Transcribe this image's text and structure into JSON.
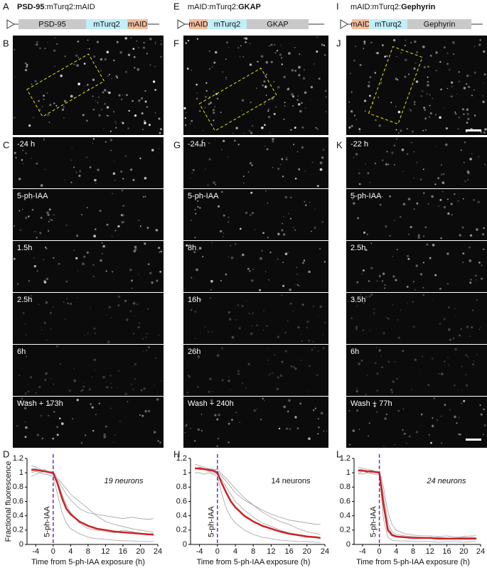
{
  "columns": [
    {
      "construct_letter": "A",
      "title": [
        "PSD-95",
        ":mTurq2:mAID"
      ],
      "bold_index": 0,
      "construct": [
        {
          "label": "PSD-95",
          "color": "#c9c9c9"
        },
        {
          "label": "mTurq2",
          "color": "#c2eef8"
        },
        {
          "label": "mAID",
          "color": "#f3bc9e"
        }
      ],
      "overview_letter": "B",
      "timelapse_letter": "C",
      "time_labels": [
        "-24 h",
        "5-ph-IAA",
        "1.5h",
        "2.5h",
        "6h",
        "Wash +  173h"
      ],
      "chart_letter": "D"
    },
    {
      "construct_letter": "E",
      "title": [
        "mAID:mTurq2:",
        "GKAP"
      ],
      "bold_index": 1,
      "construct": [
        {
          "label": "mAID",
          "color": "#f3bc9e"
        },
        {
          "label": "mTurq2",
          "color": "#c2eef8"
        },
        {
          "label": "GKAP",
          "color": "#c9c9c9"
        }
      ],
      "overview_letter": "F",
      "timelapse_letter": "G",
      "time_labels": [
        "-24 h",
        "5-ph-IAA",
        "8h",
        "16h",
        "26h",
        "Wash +  240h"
      ],
      "chart_letter": "H"
    },
    {
      "construct_letter": "I",
      "title": [
        "mAID:mTurq2:",
        "Gephyrin"
      ],
      "bold_index": 1,
      "construct": [
        {
          "label": "mAID",
          "color": "#f3bc9e"
        },
        {
          "label": "mTurq2",
          "color": "#c2eef8"
        },
        {
          "label": "Gephyrin",
          "color": "#c9c9c9"
        }
      ],
      "overview_letter": "J",
      "timelapse_letter": "K",
      "time_labels": [
        "-22 h",
        "5-ph-IAA",
        "2.5h",
        "3.5h",
        "6h",
        "Wash + 77h"
      ],
      "chart_letter": "L"
    }
  ],
  "chart_data": [
    {
      "type": "line",
      "ylabel": "Fractional fluorescence",
      "xlabel": "Time from 5-ph-IAA exposure (h)",
      "annotation": "19 neurons",
      "annotation_italic": true,
      "vline": {
        "x": 0,
        "label": "5-ph-IAA",
        "color": "#7030a0"
      },
      "xlim": [
        -6,
        24
      ],
      "xticks": [
        -4,
        0,
        4,
        8,
        12,
        16,
        20,
        24
      ],
      "ylim": [
        0,
        1.2
      ],
      "yticks": [
        0,
        0.2,
        0.4,
        0.6,
        0.8,
        1,
        1.2
      ],
      "x": [
        -5,
        -4,
        -3,
        -2,
        -1,
        0,
        1,
        2,
        3,
        4,
        6,
        8,
        10,
        12,
        14,
        16,
        18,
        20,
        22,
        23
      ],
      "series": [
        {
          "color": "#a0a0a0",
          "values": [
            1.1,
            1.08,
            1.05,
            1.02,
            1.0,
            0.98,
            0.9,
            0.8,
            0.7,
            0.62,
            0.5,
            0.44,
            0.42,
            0.4,
            0.38,
            0.36,
            0.38,
            0.36,
            0.35,
            0.36
          ]
        },
        {
          "color": "#a0a0a0",
          "values": [
            1.0,
            1.02,
            1.0,
            0.98,
            0.97,
            0.95,
            0.7,
            0.45,
            0.3,
            0.22,
            0.15,
            0.1,
            0.08,
            0.07,
            0.06,
            0.05,
            0.05,
            0.04,
            0.04,
            0.04
          ]
        },
        {
          "color": "#a0a0a0",
          "values": [
            0.95,
            0.98,
            1.0,
            1.02,
            1.0,
            0.98,
            0.88,
            0.7,
            0.55,
            0.45,
            0.3,
            0.22,
            0.2,
            0.18,
            0.16,
            0.2,
            0.18,
            0.15,
            0.14,
            0.12
          ]
        },
        {
          "color": "#a0a0a0",
          "values": [
            1.05,
            1.06,
            1.02,
            1.05,
            1.0,
            1.02,
            0.92,
            0.85,
            0.78,
            0.7,
            0.6,
            0.5,
            0.4,
            0.32,
            0.28,
            0.25,
            0.22,
            0.2,
            0.18,
            0.17
          ]
        },
        {
          "color": "#cc2222",
          "values": [
            1.04,
            1.04,
            1.03,
            1.02,
            1.01,
            1.0,
            0.85,
            0.65,
            0.5,
            0.42,
            0.32,
            0.26,
            0.22,
            0.2,
            0.18,
            0.17,
            0.16,
            0.15,
            0.14,
            0.14
          ]
        }
      ]
    },
    {
      "type": "line",
      "xlabel": "Time from 5-ph-IAA exposure (h)",
      "annotation": "14 neurons",
      "annotation_italic": false,
      "vline": {
        "x": 0,
        "label": "5-ph-IAA",
        "color": "#7030a0"
      },
      "xlim": [
        -6,
        24
      ],
      "xticks": [
        -4,
        0,
        4,
        8,
        12,
        16,
        20,
        24
      ],
      "ylim": [
        0,
        1.2
      ],
      "yticks": [
        0,
        0.2,
        0.4,
        0.6,
        0.8,
        1,
        1.2
      ],
      "x": [
        -5,
        -4,
        -3,
        -2,
        -1,
        0,
        1,
        2,
        3,
        4,
        6,
        8,
        10,
        12,
        14,
        16,
        18,
        20,
        22,
        23
      ],
      "series": [
        {
          "color": "#a0a0a0",
          "values": [
            1.12,
            1.1,
            1.08,
            1.06,
            1.05,
            1.02,
            0.95,
            0.88,
            0.8,
            0.72,
            0.62,
            0.55,
            0.48,
            0.42,
            0.38,
            0.34,
            0.32,
            0.3,
            0.28,
            0.28
          ]
        },
        {
          "color": "#a0a0a0",
          "values": [
            1.0,
            1.0,
            0.98,
            1.0,
            0.98,
            0.95,
            0.7,
            0.5,
            0.38,
            0.3,
            0.2,
            0.14,
            0.1,
            0.08,
            0.06,
            0.05,
            0.04,
            0.04,
            0.03,
            0.03
          ]
        },
        {
          "color": "#a0a0a0",
          "values": [
            1.05,
            1.08,
            1.06,
            1.02,
            1.0,
            0.98,
            0.9,
            0.8,
            0.7,
            0.6,
            0.48,
            0.38,
            0.3,
            0.25,
            0.2,
            0.16,
            0.14,
            0.12,
            0.1,
            0.08
          ]
        },
        {
          "color": "#a0a0a0",
          "values": [
            1.08,
            1.04,
            1.06,
            1.05,
            1.04,
            1.05,
            0.98,
            0.92,
            0.85,
            0.78,
            0.65,
            0.55,
            0.45,
            0.38,
            0.32,
            0.28,
            0.22,
            0.18,
            0.15,
            0.14
          ]
        },
        {
          "color": "#cc2222",
          "values": [
            1.06,
            1.06,
            1.05,
            1.04,
            1.03,
            1.0,
            0.85,
            0.72,
            0.6,
            0.52,
            0.4,
            0.32,
            0.26,
            0.22,
            0.18,
            0.15,
            0.13,
            0.11,
            0.1,
            0.09
          ]
        }
      ]
    },
    {
      "type": "line",
      "xlabel": "Time from 5-ph-IAA exposure (h)",
      "annotation": "24 neurons",
      "annotation_italic": true,
      "vline": {
        "x": 0,
        "label": "5-ph-IAA",
        "color": "#7030a0"
      },
      "xlim": [
        -6,
        24
      ],
      "xticks": [
        -4,
        0,
        4,
        8,
        12,
        16,
        20,
        24
      ],
      "ylim": [
        0,
        1.2
      ],
      "yticks": [
        0,
        0.2,
        0.4,
        0.6,
        0.8,
        1,
        1.2
      ],
      "x": [
        -5,
        -4,
        -3,
        -2,
        -1,
        0,
        1,
        2,
        3,
        4,
        6,
        8,
        10,
        12,
        14,
        16,
        18,
        20,
        22,
        23
      ],
      "series": [
        {
          "color": "#a0a0a0",
          "values": [
            1.08,
            1.06,
            1.05,
            1.04,
            1.02,
            1.02,
            0.8,
            0.45,
            0.28,
            0.2,
            0.15,
            0.13,
            0.12,
            0.12,
            0.11,
            0.12,
            0.1,
            0.11,
            0.12,
            0.12
          ]
        },
        {
          "color": "#a0a0a0",
          "values": [
            1.0,
            0.98,
            1.0,
            0.99,
            0.98,
            0.97,
            0.35,
            0.1,
            0.06,
            0.05,
            0.05,
            0.04,
            0.04,
            0.04,
            0.03,
            0.04,
            0.04,
            0.03,
            0.04,
            0.04
          ]
        },
        {
          "color": "#a0a0a0",
          "values": [
            0.98,
            1.02,
            1.03,
            1.0,
            1.02,
            0.99,
            0.6,
            0.25,
            0.15,
            0.12,
            0.1,
            0.1,
            0.09,
            0.1,
            0.09,
            0.08,
            0.09,
            0.1,
            0.09,
            0.08
          ]
        },
        {
          "color": "#a0a0a0",
          "values": [
            1.05,
            1.04,
            1.0,
            1.03,
            1.0,
            1.01,
            0.7,
            0.3,
            0.18,
            0.14,
            0.12,
            0.11,
            0.1,
            0.09,
            0.1,
            0.09,
            0.08,
            0.09,
            0.1,
            0.09
          ]
        },
        {
          "color": "#cc2222",
          "values": [
            1.03,
            1.03,
            1.02,
            1.02,
            1.01,
            1.0,
            0.55,
            0.2,
            0.13,
            0.11,
            0.1,
            0.09,
            0.09,
            0.09,
            0.08,
            0.08,
            0.08,
            0.08,
            0.08,
            0.08
          ]
        }
      ]
    }
  ]
}
